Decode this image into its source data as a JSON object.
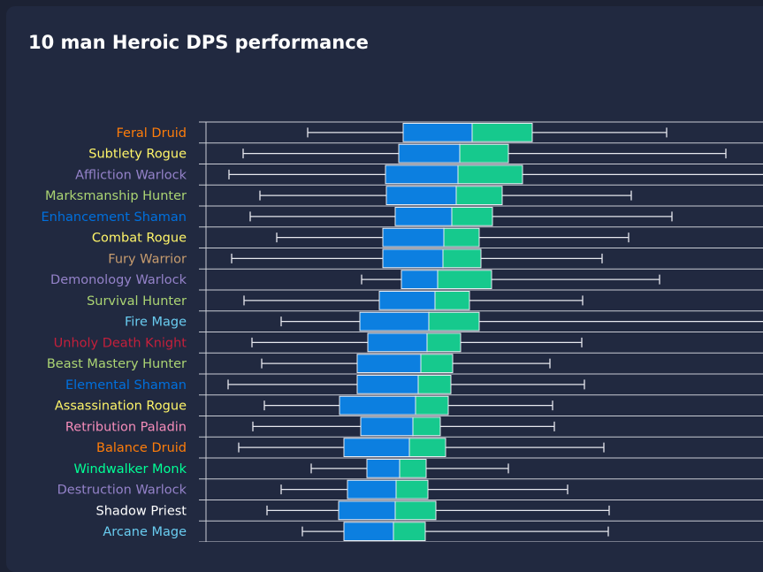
{
  "title": "10 man Heroic DPS performance",
  "chart_data": {
    "type": "box",
    "title": "10 man Heroic DPS performance",
    "orientation": "horizontal",
    "categories": [
      "Feral Druid",
      "Subtlety Rogue",
      "Affliction Warlock",
      "Marksmanship Hunter",
      "Enhancement Shaman",
      "Combat Rogue",
      "Fury Warrior",
      "Demonology Warlock",
      "Survival Hunter",
      "Fire Mage",
      "Unholy Death Knight",
      "Beast Mastery Hunter",
      "Elemental Shaman",
      "Assassination Rogue",
      "Retribution Paladin",
      "Balance Druid",
      "Windwalker Monk",
      "Destruction Warlock",
      "Shadow Priest",
      "Arcane Mage"
    ],
    "category_colors": [
      "#ff7d0a",
      "#fff569",
      "#9482c9",
      "#abd473",
      "#0070de",
      "#fff569",
      "#c79c6e",
      "#9482c9",
      "#abd473",
      "#69ccf0",
      "#c41f3b",
      "#abd473",
      "#0070de",
      "#fff569",
      "#f58cba",
      "#ff7d0a",
      "#00ff96",
      "#9482c9",
      "#ffffff",
      "#69ccf0"
    ],
    "boxes": [
      {
        "min": 348,
        "q1": 456,
        "median": 534,
        "q3": 602,
        "max": 754
      },
      {
        "min": 275,
        "q1": 451,
        "median": 520,
        "q3": 575,
        "max": 821
      },
      {
        "min": 259,
        "q1": 436,
        "median": 518,
        "q3": 591,
        "max": 870
      },
      {
        "min": 294,
        "q1": 437,
        "median": 516,
        "q3": 568,
        "max": 714
      },
      {
        "min": 283,
        "q1": 447,
        "median": 511,
        "q3": 557,
        "max": 760
      },
      {
        "min": 313,
        "q1": 433,
        "median": 502,
        "q3": 542,
        "max": 711
      },
      {
        "min": 262,
        "q1": 433,
        "median": 501,
        "q3": 544,
        "max": 681
      },
      {
        "min": 409,
        "q1": 454,
        "median": 495,
        "q3": 556,
        "max": 746
      },
      {
        "min": 276,
        "q1": 429,
        "median": 492,
        "q3": 531,
        "max": 659
      },
      {
        "min": 318,
        "q1": 407,
        "median": 485,
        "q3": 542,
        "max": 870
      },
      {
        "min": 285,
        "q1": 416,
        "median": 483,
        "q3": 521,
        "max": 658
      },
      {
        "min": 296,
        "q1": 404,
        "median": 476,
        "q3": 512,
        "max": 622
      },
      {
        "min": 258,
        "q1": 404,
        "median": 473,
        "q3": 510,
        "max": 661
      },
      {
        "min": 299,
        "q1": 384,
        "median": 470,
        "q3": 507,
        "max": 625
      },
      {
        "min": 286,
        "q1": 408,
        "median": 467,
        "q3": 498,
        "max": 627
      },
      {
        "min": 270,
        "q1": 389,
        "median": 463,
        "q3": 504,
        "max": 683
      },
      {
        "min": 352,
        "q1": 415,
        "median": 452,
        "q3": 482,
        "max": 575
      },
      {
        "min": 318,
        "q1": 393,
        "median": 448,
        "q3": 484,
        "max": 642
      },
      {
        "min": 302,
        "q1": 383,
        "median": 447,
        "q3": 493,
        "max": 689
      },
      {
        "min": 342,
        "q1": 389,
        "median": 445,
        "q3": 481,
        "max": 688
      }
    ],
    "xlim": [
      233,
      863
    ],
    "colors": {
      "lower_box": "#0c7fe0",
      "upper_box": "#16c98d",
      "whisker": "#e6e8ee",
      "grid": "#c9ccd4"
    },
    "grid": true,
    "xlabel": "",
    "ylabel": ""
  }
}
